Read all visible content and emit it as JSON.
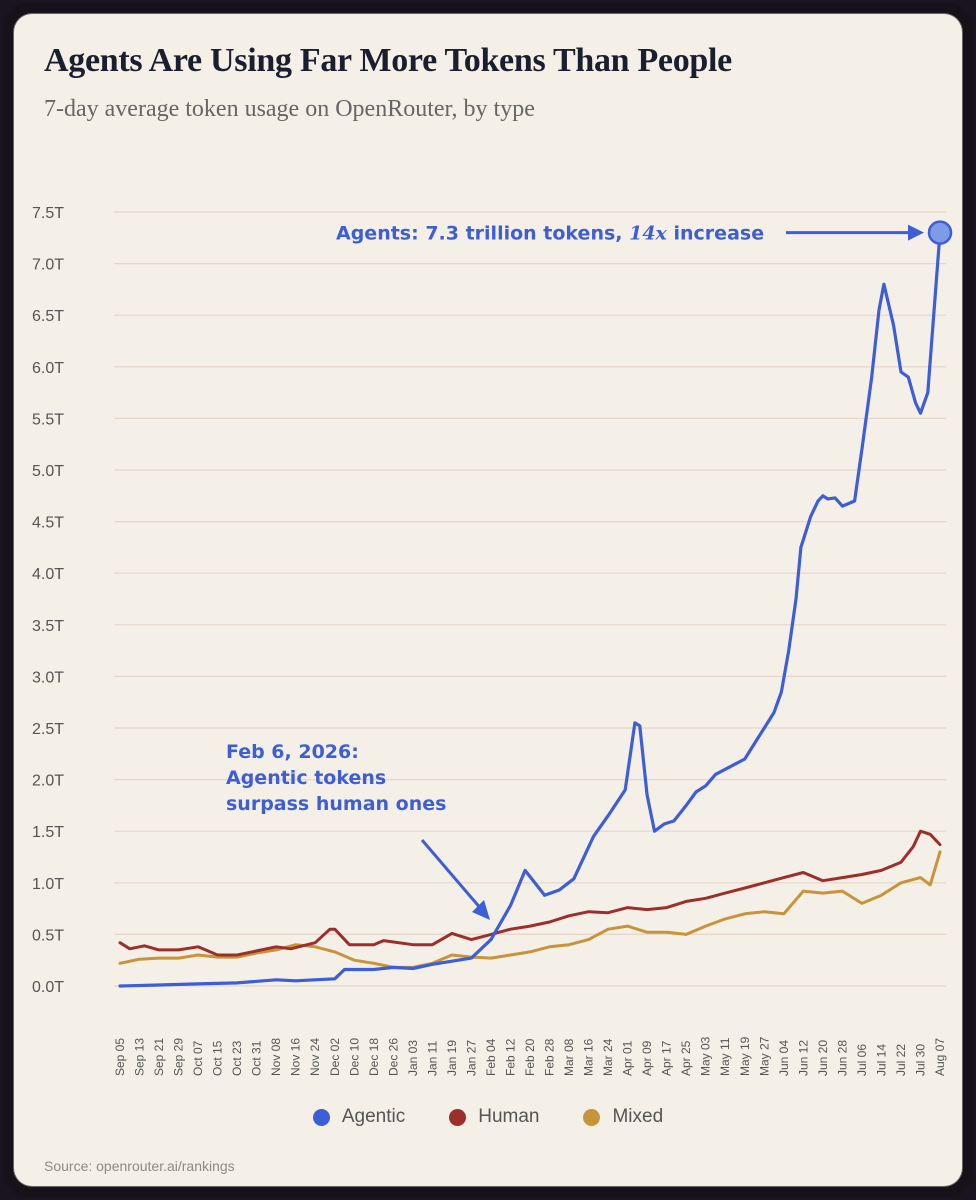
{
  "title": "Agents Are Using Far More Tokens Than People",
  "subtitle": "7-day average token usage on OpenRouter, by type",
  "source": "Source: openrouter.ai/rankings",
  "colors": {
    "agentic": "#3d5ed6",
    "human": "#9c2f2a",
    "mixed": "#c8943a",
    "grid": "#e5d6c9",
    "text": "#1b1e2e"
  },
  "annotations": {
    "peak_prefix": "Agents: 7.3 trillion tokens, ",
    "peak_emph": "14x",
    "peak_suffix": " increase",
    "crossover_line1": "Feb 6, 2026:",
    "crossover_line2": "Agentic tokens",
    "crossover_line3": "surpass human ones"
  },
  "chart_data": {
    "type": "line",
    "title": "Agents Are Using Far More Tokens Than People",
    "subtitle": "7-day average token usage on OpenRouter, by type",
    "y_unit": "trillion tokens",
    "ylim": [
      0,
      7.5
    ],
    "y_ticks": [
      "0.0T",
      "0.5T",
      "1.0T",
      "1.5T",
      "2.0T",
      "2.5T",
      "3.0T",
      "3.5T",
      "4.0T",
      "4.5T",
      "5.0T",
      "5.5T",
      "6.0T",
      "6.5T",
      "7.0T",
      "7.5T"
    ],
    "x_tick_labels": [
      "Sep 05",
      "Sep 13",
      "Sep 21",
      "Sep 29",
      "Oct 07",
      "Oct 15",
      "Oct 23",
      "Oct 31",
      "Nov 08",
      "Nov 16",
      "Nov 24",
      "Dec 02",
      "Dec 10",
      "Dec 18",
      "Dec 26",
      "Jan 03",
      "Jan 11",
      "Jan 19",
      "Jan 27",
      "Feb 04",
      "Feb 12",
      "Feb 20",
      "Feb 28",
      "Mar 08",
      "Mar 16",
      "Mar 24",
      "Apr 01",
      "Apr 09",
      "Apr 17",
      "Apr 25",
      "May 03",
      "May 11",
      "May 19",
      "May 27",
      "Jun 04",
      "Jun 12",
      "Jun 20",
      "Jun 28",
      "Jul 06",
      "Jul 14",
      "Jul 22",
      "Jul 30",
      "Aug 07"
    ],
    "grid": true,
    "legend_position": "bottom-center",
    "series": [
      {
        "name": "Agentic",
        "color": "#3d5ed6",
        "points": [
          [
            "Sep 05",
            0.0
          ],
          [
            "Sep 21",
            0.01
          ],
          [
            "Oct 07",
            0.02
          ],
          [
            "Oct 23",
            0.03
          ],
          [
            "Nov 08",
            0.06
          ],
          [
            "Nov 16",
            0.05
          ],
          [
            "Nov 24",
            0.06
          ],
          [
            "Dec 02",
            0.07
          ],
          [
            "Dec 06",
            0.16
          ],
          [
            "Dec 18",
            0.16
          ],
          [
            "Dec 26",
            0.18
          ],
          [
            "Jan 03",
            0.17
          ],
          [
            "Jan 11",
            0.21
          ],
          [
            "Jan 19",
            0.24
          ],
          [
            "Jan 27",
            0.27
          ],
          [
            "Feb 04",
            0.45
          ],
          [
            "Feb 12",
            0.78
          ],
          [
            "Feb 18",
            1.12
          ],
          [
            "Feb 26",
            0.88
          ],
          [
            "Mar 04",
            0.93
          ],
          [
            "Mar 10",
            1.04
          ],
          [
            "Mar 18",
            1.45
          ],
          [
            "Mar 24",
            1.65
          ],
          [
            "Mar 31",
            1.9
          ],
          [
            "Apr 04",
            2.55
          ],
          [
            "Apr 06",
            2.52
          ],
          [
            "Apr 09",
            1.85
          ],
          [
            "Apr 12",
            1.5
          ],
          [
            "Apr 16",
            1.57
          ],
          [
            "Apr 20",
            1.6
          ],
          [
            "Apr 25",
            1.75
          ],
          [
            "Apr 29",
            1.88
          ],
          [
            "May 03",
            1.94
          ],
          [
            "May 07",
            2.05
          ],
          [
            "May 11",
            2.1
          ],
          [
            "May 19",
            2.2
          ],
          [
            "May 23",
            2.35
          ],
          [
            "May 27",
            2.5
          ],
          [
            "May 31",
            2.65
          ],
          [
            "Jun 03",
            2.85
          ],
          [
            "Jun 06",
            3.25
          ],
          [
            "Jun 09",
            3.75
          ],
          [
            "Jun 11",
            4.25
          ],
          [
            "Jun 15",
            4.55
          ],
          [
            "Jun 18",
            4.7
          ],
          [
            "Jun 20",
            4.75
          ],
          [
            "Jun 22",
            4.72
          ],
          [
            "Jun 25",
            4.73
          ],
          [
            "Jun 28",
            4.65
          ],
          [
            "Jul 03",
            4.7
          ],
          [
            "Jul 06",
            5.2
          ],
          [
            "Jul 10",
            5.9
          ],
          [
            "Jul 13",
            6.55
          ],
          [
            "Jul 15",
            6.8
          ],
          [
            "Jul 19",
            6.4
          ],
          [
            "Jul 22",
            5.95
          ],
          [
            "Jul 25",
            5.9
          ],
          [
            "Jul 28",
            5.65
          ],
          [
            "Jul 30",
            5.55
          ],
          [
            "Aug 02",
            5.75
          ],
          [
            "Aug 07",
            7.3
          ]
        ]
      },
      {
        "name": "Human",
        "color": "#9c2f2a",
        "points": [
          [
            "Sep 05",
            0.42
          ],
          [
            "Sep 09",
            0.36
          ],
          [
            "Sep 15",
            0.39
          ],
          [
            "Sep 21",
            0.35
          ],
          [
            "Sep 29",
            0.35
          ],
          [
            "Oct 07",
            0.38
          ],
          [
            "Oct 15",
            0.3
          ],
          [
            "Oct 23",
            0.3
          ],
          [
            "Oct 31",
            0.34
          ],
          [
            "Nov 08",
            0.38
          ],
          [
            "Nov 14",
            0.36
          ],
          [
            "Nov 24",
            0.42
          ],
          [
            "Nov 30",
            0.55
          ],
          [
            "Dec 02",
            0.55
          ],
          [
            "Dec 08",
            0.4
          ],
          [
            "Dec 18",
            0.4
          ],
          [
            "Dec 22",
            0.44
          ],
          [
            "Jan 03",
            0.4
          ],
          [
            "Jan 11",
            0.4
          ],
          [
            "Jan 19",
            0.51
          ],
          [
            "Jan 27",
            0.45
          ],
          [
            "Feb 04",
            0.5
          ],
          [
            "Feb 12",
            0.55
          ],
          [
            "Feb 20",
            0.58
          ],
          [
            "Feb 28",
            0.62
          ],
          [
            "Mar 08",
            0.68
          ],
          [
            "Mar 16",
            0.72
          ],
          [
            "Mar 24",
            0.71
          ],
          [
            "Apr 01",
            0.76
          ],
          [
            "Apr 09",
            0.74
          ],
          [
            "Apr 17",
            0.76
          ],
          [
            "Apr 25",
            0.82
          ],
          [
            "May 03",
            0.85
          ],
          [
            "May 11",
            0.9
          ],
          [
            "May 19",
            0.95
          ],
          [
            "May 27",
            1.0
          ],
          [
            "Jun 04",
            1.05
          ],
          [
            "Jun 12",
            1.1
          ],
          [
            "Jun 20",
            1.02
          ],
          [
            "Jun 28",
            1.05
          ],
          [
            "Jul 06",
            1.08
          ],
          [
            "Jul 14",
            1.12
          ],
          [
            "Jul 22",
            1.2
          ],
          [
            "Jul 27",
            1.35
          ],
          [
            "Jul 30",
            1.5
          ],
          [
            "Aug 03",
            1.47
          ],
          [
            "Aug 07",
            1.37
          ]
        ]
      },
      {
        "name": "Mixed",
        "color": "#c8943a",
        "points": [
          [
            "Sep 05",
            0.22
          ],
          [
            "Sep 13",
            0.26
          ],
          [
            "Sep 21",
            0.27
          ],
          [
            "Sep 29",
            0.27
          ],
          [
            "Oct 07",
            0.3
          ],
          [
            "Oct 15",
            0.28
          ],
          [
            "Oct 23",
            0.28
          ],
          [
            "Oct 31",
            0.32
          ],
          [
            "Nov 08",
            0.35
          ],
          [
            "Nov 16",
            0.4
          ],
          [
            "Nov 24",
            0.38
          ],
          [
            "Dec 02",
            0.33
          ],
          [
            "Dec 10",
            0.25
          ],
          [
            "Dec 18",
            0.22
          ],
          [
            "Dec 26",
            0.18
          ],
          [
            "Jan 03",
            0.18
          ],
          [
            "Jan 11",
            0.22
          ],
          [
            "Jan 19",
            0.3
          ],
          [
            "Jan 27",
            0.28
          ],
          [
            "Feb 04",
            0.27
          ],
          [
            "Feb 12",
            0.3
          ],
          [
            "Feb 20",
            0.33
          ],
          [
            "Feb 28",
            0.38
          ],
          [
            "Mar 08",
            0.4
          ],
          [
            "Mar 16",
            0.45
          ],
          [
            "Mar 24",
            0.55
          ],
          [
            "Apr 01",
            0.58
          ],
          [
            "Apr 09",
            0.52
          ],
          [
            "Apr 17",
            0.52
          ],
          [
            "Apr 25",
            0.5
          ],
          [
            "May 03",
            0.58
          ],
          [
            "May 11",
            0.65
          ],
          [
            "May 19",
            0.7
          ],
          [
            "May 27",
            0.72
          ],
          [
            "Jun 04",
            0.7
          ],
          [
            "Jun 12",
            0.92
          ],
          [
            "Jun 20",
            0.9
          ],
          [
            "Jun 28",
            0.92
          ],
          [
            "Jul 06",
            0.8
          ],
          [
            "Jul 14",
            0.88
          ],
          [
            "Jul 22",
            1.0
          ],
          [
            "Jul 30",
            1.05
          ],
          [
            "Aug 03",
            0.98
          ],
          [
            "Aug 07",
            1.3
          ]
        ]
      }
    ]
  }
}
